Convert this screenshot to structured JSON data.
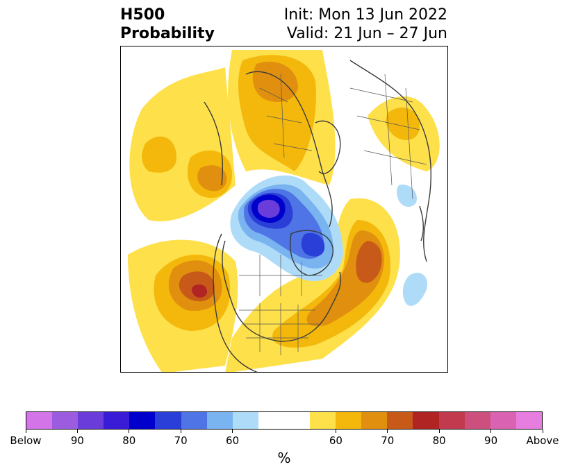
{
  "header": {
    "title_line1": "H500",
    "title_line2": "Probability",
    "init": "Init: Mon 13 Jun 2022",
    "valid": "Valid: 21 Jun – 27 Jun"
  },
  "colorbar": {
    "colors": [
      "#d375e8",
      "#9c5ce0",
      "#6a3ddb",
      "#3a1bd6",
      "#0000cc",
      "#2a3fd8",
      "#4e74e6",
      "#79b3f0",
      "#aedcf8",
      "#ffffff",
      "#ffffff",
      "#fde04a",
      "#f3b80b",
      "#e0900e",
      "#c85a19",
      "#b02424",
      "#c23a4e",
      "#cc4f7e",
      "#da62b3",
      "#e77ddf"
    ],
    "tick_labels": [
      "Below",
      "90",
      "80",
      "70",
      "60",
      "60",
      "70",
      "80",
      "90",
      "Above"
    ],
    "unit": "%"
  }
}
